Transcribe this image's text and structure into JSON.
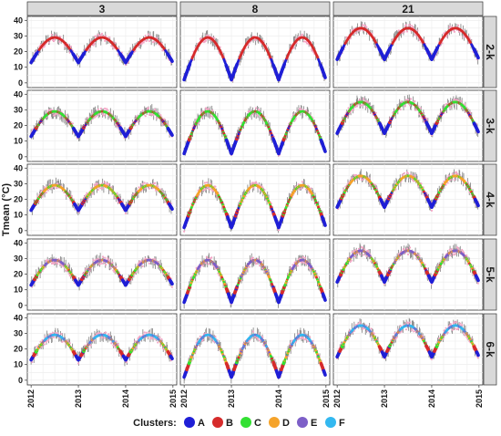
{
  "chart_data": {
    "type": "line",
    "ylabel": "Tmean (°C)",
    "column_strips": [
      "3",
      "8",
      "21"
    ],
    "row_strips": [
      "2-k",
      "3-k",
      "4-k",
      "5-k",
      "6-k"
    ],
    "xlim": [
      2012,
      2015
    ],
    "ylim": [
      0,
      40
    ],
    "x_ticks": [
      "2012",
      "2013",
      "2014",
      "2015"
    ],
    "y_ticks": [
      "0",
      "10",
      "20",
      "30",
      "40"
    ],
    "legend": {
      "title": "Clusters:",
      "position": "bottom",
      "entries": [
        {
          "label": "A",
          "color": "#1f1fd6"
        },
        {
          "label": "B",
          "color": "#d62b2b"
        },
        {
          "label": "C",
          "color": "#33e033"
        },
        {
          "label": "D",
          "color": "#f5a32a"
        },
        {
          "label": "E",
          "color": "#7d5fc8"
        },
        {
          "label": "F",
          "color": "#33b8f0"
        }
      ]
    },
    "curve_params": [
      {
        "column": "3",
        "min": 13,
        "max": 29
      },
      {
        "column": "8",
        "min": 2,
        "max": 29
      },
      {
        "column": "21",
        "min": 15,
        "max": 35
      }
    ]
  }
}
